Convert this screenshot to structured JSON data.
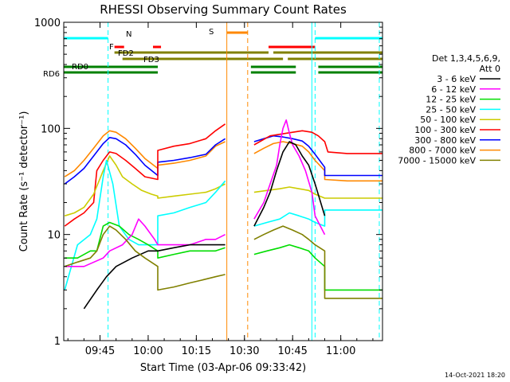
{
  "chart_data": {
    "type": "line",
    "title": "RHESSI Observing Summary Count Rates",
    "xlabel": "Start Time (03-Apr-06 09:33:42)",
    "ylabel": "Count Rate (s⁻¹ detector⁻¹)",
    "y_scale": "log",
    "ylim": [
      1,
      1000
    ],
    "xlim": [
      "09:33:42",
      "11:13:00"
    ],
    "x_ticks": [
      "09:45",
      "10:00",
      "10:15",
      "10:30",
      "10:45",
      "11:00"
    ],
    "y_ticks": [
      "1",
      "10",
      "100",
      "1000"
    ],
    "timestamp": "14-Oct-2021 18:20",
    "legend": {
      "placement": "right",
      "header": [
        "Det 1,3,4,5,6,9,",
        "Att 0"
      ],
      "entries": [
        {
          "label": "3 - 6 keV",
          "color": "#000000"
        },
        {
          "label": "6 - 12 keV",
          "color": "#ff00ff"
        },
        {
          "label": "12 - 25 keV",
          "color": "#00dd00"
        },
        {
          "label": "25 - 50 keV",
          "color": "#00ffff"
        },
        {
          "label": "50 - 100 keV",
          "color": "#cccc00"
        },
        {
          "label": "100 - 300 keV",
          "color": "#ff0000"
        },
        {
          "label": "300 - 800 keV",
          "color": "#0000ff"
        },
        {
          "label": "800 - 7000 keV",
          "color": "#ff8800"
        },
        {
          "label": "7000 - 15000 keV",
          "color": "#808000"
        }
      ]
    },
    "flags": [
      {
        "label": "N",
        "color": "#00ffff",
        "intervals": [
          [
            "09:33:42",
            "09:47:30"
          ],
          [
            "10:52:00",
            "11:13:00"
          ]
        ]
      },
      {
        "label": "S",
        "color": "#ff8800",
        "intervals": [
          [
            "10:24:30",
            "10:31:00"
          ]
        ]
      },
      {
        "label": "F",
        "color": "#ff0000",
        "intervals": [
          [
            "09:49:30",
            "09:52:30"
          ],
          [
            "10:01:30",
            "10:04:00"
          ],
          [
            "10:37:30",
            "10:52:00"
          ]
        ]
      },
      {
        "label": "FD2",
        "color": "#808000",
        "intervals": [
          [
            "09:49:30",
            "10:37:30"
          ],
          [
            "10:39:00",
            "11:13:00"
          ]
        ]
      },
      {
        "label": "FD3",
        "color": "#808000",
        "intervals": [
          [
            "09:52:00",
            "10:42:00"
          ],
          [
            "10:43:30",
            "11:13:00"
          ]
        ]
      },
      {
        "label": "RD0",
        "color": "#008000",
        "intervals": [
          [
            "09:33:42",
            "10:03:00"
          ],
          [
            "10:32:00",
            "10:46:00"
          ],
          [
            "10:53:00",
            "11:13:00"
          ]
        ]
      },
      {
        "label": "RD6",
        "color": "#008000",
        "intervals": [
          [
            "09:33:42",
            "10:03:00"
          ],
          [
            "10:32:00",
            "10:46:00"
          ],
          [
            "10:53:00",
            "11:13:00"
          ]
        ]
      }
    ],
    "vlines": [
      {
        "time": "09:47:30",
        "color": "#00ffff",
        "style": "dashed"
      },
      {
        "time": "10:52:00",
        "color": "#00ffff",
        "style": "dashed"
      },
      {
        "time": "11:12:00",
        "color": "#00ffff",
        "style": "dashed"
      },
      {
        "time": "10:24:30",
        "color": "#ff8800",
        "style": "solid"
      },
      {
        "time": "10:31:00",
        "color": "#ff8800",
        "style": "dashed"
      },
      {
        "time": "09:33:42",
        "color": "#00ffff",
        "style": "solid"
      },
      {
        "time": "10:51:00",
        "color": "#00ffff",
        "style": "solid"
      }
    ],
    "series": [
      {
        "name": "800 - 7000 keV",
        "color": "#ff8800",
        "x": [
          "09:34",
          "09:37",
          "09:40",
          "09:43",
          "09:46",
          "09:48",
          "09:50",
          "09:53",
          "09:56",
          "09:59",
          "10:03",
          "10:03",
          "10:08",
          "10:13",
          "10:18",
          "10:21",
          "10:24",
          "10:24",
          "10:33",
          "10:33",
          "10:36",
          "10:39",
          "10:42",
          "10:45",
          "10:48",
          "10:50",
          "10:52",
          "10:55",
          "10:55",
          "11:02",
          "11:08",
          "11:13"
        ],
        "y": [
          35,
          40,
          50,
          65,
          85,
          95,
          92,
          80,
          65,
          52,
          42,
          45,
          47,
          50,
          55,
          68,
          75,
          null,
          null,
          58,
          65,
          72,
          75,
          72,
          68,
          60,
          50,
          40,
          33,
          32,
          32,
          32
        ]
      },
      {
        "name": "300 - 800 keV",
        "color": "#0000ff",
        "x": [
          "09:34",
          "09:37",
          "09:40",
          "09:43",
          "09:46",
          "09:48",
          "09:50",
          "09:53",
          "09:56",
          "09:59",
          "10:03",
          "10:03",
          "10:08",
          "10:13",
          "10:18",
          "10:21",
          "10:24",
          "10:24",
          "10:33",
          "10:33",
          "10:36",
          "10:39",
          "10:42",
          "10:45",
          "10:48",
          "10:50",
          "10:52",
          "10:55",
          "10:55",
          "11:02",
          "11:08",
          "11:13"
        ],
        "y": [
          30,
          35,
          42,
          55,
          72,
          82,
          80,
          70,
          57,
          45,
          36,
          48,
          50,
          53,
          57,
          70,
          80,
          null,
          null,
          75,
          80,
          85,
          83,
          80,
          76,
          68,
          57,
          43,
          36,
          36,
          36,
          36
        ]
      },
      {
        "name": "100 - 300 keV",
        "color": "#ff0000",
        "x": [
          "09:34",
          "09:37",
          "09:40",
          "09:43",
          "09:44",
          "09:46",
          "09:48",
          "09:50",
          "09:53",
          "09:56",
          "09:59",
          "10:03",
          "10:03",
          "10:08",
          "10:13",
          "10:18",
          "10:21",
          "10:24",
          "10:24",
          "10:33",
          "10:33",
          "10:38",
          "10:43",
          "10:48",
          "10:51",
          "10:53",
          "10:55",
          "10:56",
          "11:02",
          "11:08",
          "11:13"
        ],
        "y": [
          12,
          14,
          16,
          20,
          40,
          50,
          60,
          58,
          50,
          42,
          35,
          33,
          62,
          68,
          72,
          80,
          95,
          110,
          null,
          null,
          70,
          85,
          90,
          95,
          92,
          85,
          75,
          60,
          58,
          58,
          58
        ]
      },
      {
        "name": "50 - 100 keV",
        "color": "#cccc00",
        "x": [
          "09:34",
          "09:37",
          "09:40",
          "09:43",
          "09:46",
          "09:48",
          "09:50",
          "09:52",
          "09:55",
          "09:58",
          "10:01",
          "10:03",
          "10:03",
          "10:08",
          "10:13",
          "10:18",
          "10:21",
          "10:24",
          "10:24",
          "10:33",
          "10:33",
          "10:37",
          "10:41",
          "10:44",
          "10:47",
          "10:50",
          "10:52",
          "10:55",
          "10:55",
          "11:02",
          "11:08",
          "11:13"
        ],
        "y": [
          15,
          16,
          18,
          24,
          40,
          55,
          45,
          35,
          30,
          26,
          24,
          23,
          22,
          23,
          24,
          25,
          27,
          30,
          null,
          null,
          25,
          26,
          27,
          28,
          27,
          26,
          24,
          22,
          22,
          22,
          22,
          22
        ]
      },
      {
        "name": "25 - 50 keV",
        "color": "#00ffff",
        "x": [
          "09:34",
          "09:38",
          "09:42",
          "09:44",
          "09:46",
          "09:47",
          "09:49",
          "09:51",
          "09:54",
          "09:57",
          "10:00",
          "10:03",
          "10:03",
          "10:08",
          "10:13",
          "10:18",
          "10:21",
          "10:24",
          "10:24",
          "10:33",
          "10:33",
          "10:37",
          "10:41",
          "10:44",
          "10:47",
          "10:50",
          "10:52",
          "10:55",
          "10:55",
          "11:02",
          "11:08",
          "11:13"
        ],
        "y": [
          3,
          8,
          10,
          14,
          35,
          50,
          30,
          12,
          9,
          8,
          8,
          8,
          15,
          16,
          18,
          20,
          25,
          32,
          null,
          null,
          12,
          13,
          14,
          16,
          15,
          14,
          13,
          12,
          17,
          17,
          17,
          17
        ]
      },
      {
        "name": "12 - 25 keV",
        "color": "#00dd00",
        "x": [
          "09:34",
          "09:38",
          "09:42",
          "09:44",
          "09:46",
          "09:48",
          "09:51",
          "09:54",
          "09:57",
          "10:00",
          "10:03",
          "10:03",
          "10:08",
          "10:13",
          "10:18",
          "10:21",
          "10:24",
          "10:24",
          "10:33",
          "10:33",
          "10:37",
          "10:41",
          "10:44",
          "10:47",
          "10:50",
          "10:52",
          "10:55",
          "10:55",
          "11:02",
          "11:08",
          "11:13"
        ],
        "y": [
          6,
          6,
          7,
          7,
          12,
          13,
          12,
          10,
          9,
          8,
          7,
          6,
          6.5,
          7,
          7,
          7,
          7.5,
          null,
          null,
          6.5,
          7,
          7.5,
          8,
          7.5,
          7,
          6,
          5,
          3,
          3,
          3,
          3
        ]
      },
      {
        "name": "6 - 12 keV",
        "color": "#ff00ff",
        "x": [
          "09:34",
          "09:40",
          "09:46",
          "09:48",
          "09:52",
          "09:55",
          "09:57",
          "09:59",
          "10:02",
          "10:03",
          "10:03",
          "10:08",
          "10:13",
          "10:18",
          "10:21",
          "10:24",
          "10:24",
          "10:33",
          "10:33",
          "10:36",
          "10:38",
          "10:40",
          "10:41",
          "10:42",
          "10:43",
          "10:44",
          "10:45",
          "10:47",
          "10:49",
          "10:51",
          "10:52",
          "10:55",
          "10:55",
          "11:13"
        ],
        "y": [
          5,
          5,
          6,
          7,
          8,
          10,
          14,
          12,
          9,
          8,
          8,
          8,
          8,
          9,
          9,
          10,
          null,
          null,
          14,
          20,
          30,
          45,
          70,
          100,
          120,
          90,
          70,
          55,
          40,
          25,
          15,
          10,
          null,
          null
        ]
      },
      {
        "name": "3 - 6 keV",
        "color": "#000000",
        "x": [
          "09:40",
          "09:44",
          "09:47",
          "09:50",
          "09:55",
          "10:00",
          "10:03",
          "10:03",
          "10:08",
          "10:13",
          "10:18",
          "10:21",
          "10:24",
          "10:24",
          "10:33",
          "10:33",
          "10:36",
          "10:38",
          "10:40",
          "10:42",
          "10:44",
          "10:46",
          "10:48",
          "10:50",
          "10:52",
          "10:55",
          "10:55",
          "11:13"
        ],
        "y": [
          2,
          3,
          4,
          5,
          6,
          7,
          7,
          7,
          7.5,
          8,
          8,
          8,
          8,
          null,
          null,
          12,
          18,
          25,
          40,
          60,
          75,
          70,
          55,
          45,
          30,
          15,
          null,
          null
        ]
      },
      {
        "name": "7000 - 15000 keV",
        "color": "#808000",
        "x": [
          "09:34",
          "09:38",
          "09:42",
          "09:44",
          "09:46",
          "09:48",
          "09:50",
          "09:53",
          "09:56",
          "09:59",
          "10:03",
          "10:03",
          "10:08",
          "10:13",
          "10:18",
          "10:21",
          "10:24",
          "10:24",
          "10:33",
          "10:33",
          "10:36",
          "10:39",
          "10:42",
          "10:45",
          "10:48",
          "10:50",
          "10:52",
          "10:55",
          "10:55",
          "11:02",
          "11:08",
          "11:13"
        ],
        "y": [
          5,
          5.5,
          6,
          7,
          10,
          12,
          11,
          9,
          7,
          6,
          5,
          3,
          3.2,
          3.5,
          3.8,
          4,
          4.2,
          null,
          null,
          9,
          10,
          11,
          12,
          11,
          10,
          9,
          8,
          7,
          2.5,
          2.5,
          2.5,
          2.5
        ]
      }
    ]
  }
}
